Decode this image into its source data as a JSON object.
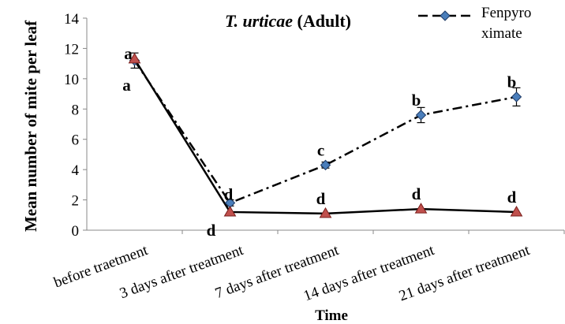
{
  "chart_data": {
    "type": "line",
    "title": {
      "species": "T. urticae",
      "stage": "(Adult)"
    },
    "x_label": "Time",
    "y_label": "Mean number of mite per leaf",
    "categories": [
      "before traetment",
      "3 days after treatment",
      "7 days after treatment",
      "14 days after treatment",
      "21 days after treatment"
    ],
    "series": [
      {
        "name": "Fenpyroximate",
        "color": "#000000",
        "marker_color": "#4a7ebb",
        "values": [
          11.2,
          1.8,
          4.3,
          7.6,
          8.8
        ],
        "errors": [
          0.5,
          0.2,
          0.2,
          0.5,
          0.6
        ],
        "labels": [
          "a",
          "d",
          "c",
          "b",
          "b"
        ]
      },
      {
        "color": "#000000",
        "marker_color": "#c0504d",
        "values": [
          11.3,
          1.2,
          1.1,
          1.4,
          1.2
        ],
        "labels": [
          "a",
          "d",
          "d",
          "d",
          "d"
        ]
      }
    ],
    "ylim": [
      0,
      14
    ],
    "yticks": [
      0,
      2,
      4,
      6,
      8,
      10,
      12,
      14
    ]
  }
}
